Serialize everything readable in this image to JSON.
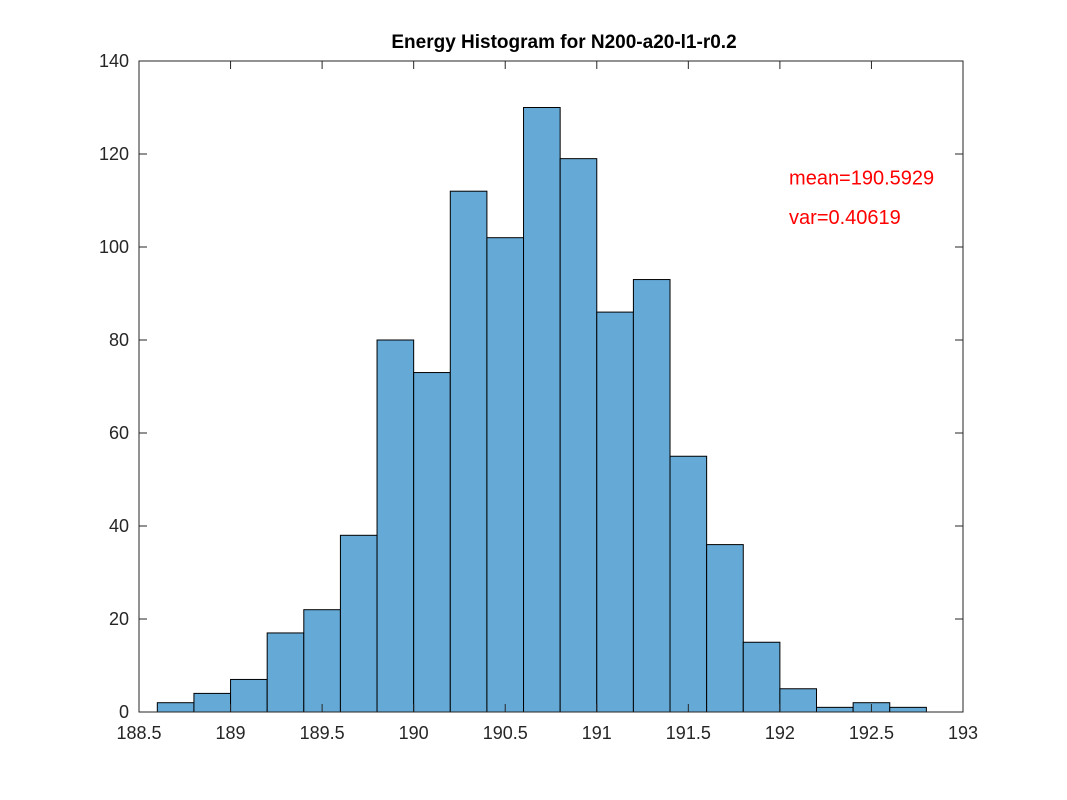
{
  "chart_data": {
    "type": "histogram",
    "title": "Energy Histogram for N200-a20-l1-r0.2",
    "xlabel": "",
    "ylabel": "",
    "xlim": [
      188.5,
      193
    ],
    "ylim": [
      0,
      140
    ],
    "xticks": [
      "188.5",
      "189",
      "189.5",
      "190",
      "190.5",
      "191",
      "191.5",
      "192",
      "192.5",
      "193"
    ],
    "yticks": [
      "0",
      "20",
      "40",
      "60",
      "80",
      "100",
      "120",
      "140"
    ],
    "bin_width": 0.2,
    "bins": [
      {
        "x0": 188.6,
        "x1": 188.8,
        "count": 2
      },
      {
        "x0": 188.8,
        "x1": 189.0,
        "count": 4
      },
      {
        "x0": 189.0,
        "x1": 189.2,
        "count": 7
      },
      {
        "x0": 189.2,
        "x1": 189.4,
        "count": 17
      },
      {
        "x0": 189.4,
        "x1": 189.6,
        "count": 22
      },
      {
        "x0": 189.6,
        "x1": 189.8,
        "count": 38
      },
      {
        "x0": 189.8,
        "x1": 190.0,
        "count": 80
      },
      {
        "x0": 190.0,
        "x1": 190.2,
        "count": 73
      },
      {
        "x0": 190.2,
        "x1": 190.4,
        "count": 112
      },
      {
        "x0": 190.4,
        "x1": 190.6,
        "count": 102
      },
      {
        "x0": 190.6,
        "x1": 190.8,
        "count": 130
      },
      {
        "x0": 190.8,
        "x1": 191.0,
        "count": 119
      },
      {
        "x0": 191.0,
        "x1": 191.2,
        "count": 86
      },
      {
        "x0": 191.2,
        "x1": 191.4,
        "count": 93
      },
      {
        "x0": 191.4,
        "x1": 191.6,
        "count": 55
      },
      {
        "x0": 191.6,
        "x1": 191.8,
        "count": 36
      },
      {
        "x0": 191.8,
        "x1": 192.0,
        "count": 15
      },
      {
        "x0": 192.0,
        "x1": 192.2,
        "count": 5
      },
      {
        "x0": 192.2,
        "x1": 192.4,
        "count": 1
      },
      {
        "x0": 192.4,
        "x1": 192.6,
        "count": 2
      },
      {
        "x0": 192.6,
        "x1": 192.8,
        "count": 1
      }
    ],
    "bar_color": "#65a9d7",
    "bar_edge_color": "#000000",
    "annotations": [
      {
        "text": "mean=190.5929",
        "color": "#ff0000",
        "x": 192.05,
        "y": 115
      },
      {
        "text": "var=0.40619",
        "color": "#ff0000",
        "x": 192.05,
        "y": 106.5
      }
    ],
    "grid": false,
    "legend": "none"
  }
}
